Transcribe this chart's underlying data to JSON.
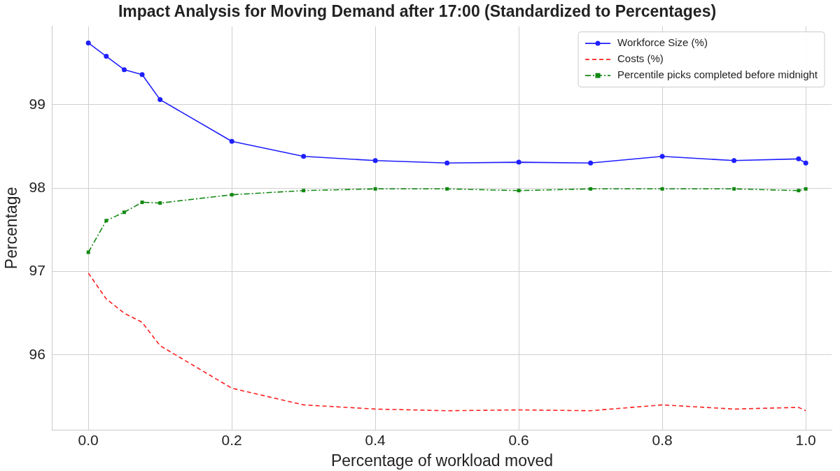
{
  "chart_data": {
    "type": "line",
    "title": "Impact Analysis for Moving Demand after 17:00 (Standardized to Percentages)",
    "xlabel": "Percentage of workload moved",
    "ylabel": "Percentage",
    "x": [
      0,
      0.025,
      0.05,
      0.075,
      0.1,
      0.2,
      0.3,
      0.4,
      0.5,
      0.6,
      0.7,
      0.8,
      0.9,
      0.99,
      1.0
    ],
    "series": [
      {
        "name": "Workforce Size (%)",
        "color": "#1f1fff",
        "marker": "circle",
        "line_style": "solid",
        "values": [
          99.74,
          99.58,
          99.42,
          99.36,
          99.06,
          98.56,
          98.38,
          98.33,
          98.3,
          98.31,
          98.3,
          98.38,
          98.33,
          98.35,
          98.3
        ]
      },
      {
        "name": "Costs (%)",
        "color": "#ff2020",
        "marker": "none",
        "line_style": "dashed",
        "values": [
          96.98,
          96.67,
          96.5,
          96.39,
          96.11,
          95.6,
          95.4,
          95.35,
          95.33,
          95.34,
          95.33,
          95.4,
          95.35,
          95.37,
          95.33
        ]
      },
      {
        "name": "Percentile picks completed before midnight",
        "color": "#118811",
        "marker": "square",
        "line_style": "dashdot",
        "values": [
          97.23,
          97.61,
          97.71,
          97.83,
          97.82,
          97.92,
          97.97,
          97.99,
          97.99,
          97.97,
          97.99,
          97.99,
          97.99,
          97.97,
          97.99
        ]
      }
    ],
    "xlim": [
      -0.05,
      1.036
    ],
    "ylim": [
      95.1,
      99.94
    ],
    "xticks": [
      {
        "value": 0,
        "label": "0.0"
      },
      {
        "value": 0.2,
        "label": "0.2"
      },
      {
        "value": 0.4,
        "label": "0.4"
      },
      {
        "value": 0.6,
        "label": "0.6"
      },
      {
        "value": 0.8,
        "label": "0.8"
      },
      {
        "value": 1.0,
        "label": "1.0"
      }
    ],
    "yticks": [
      96,
      97,
      98,
      99
    ],
    "grid": true,
    "legend": "top right"
  }
}
